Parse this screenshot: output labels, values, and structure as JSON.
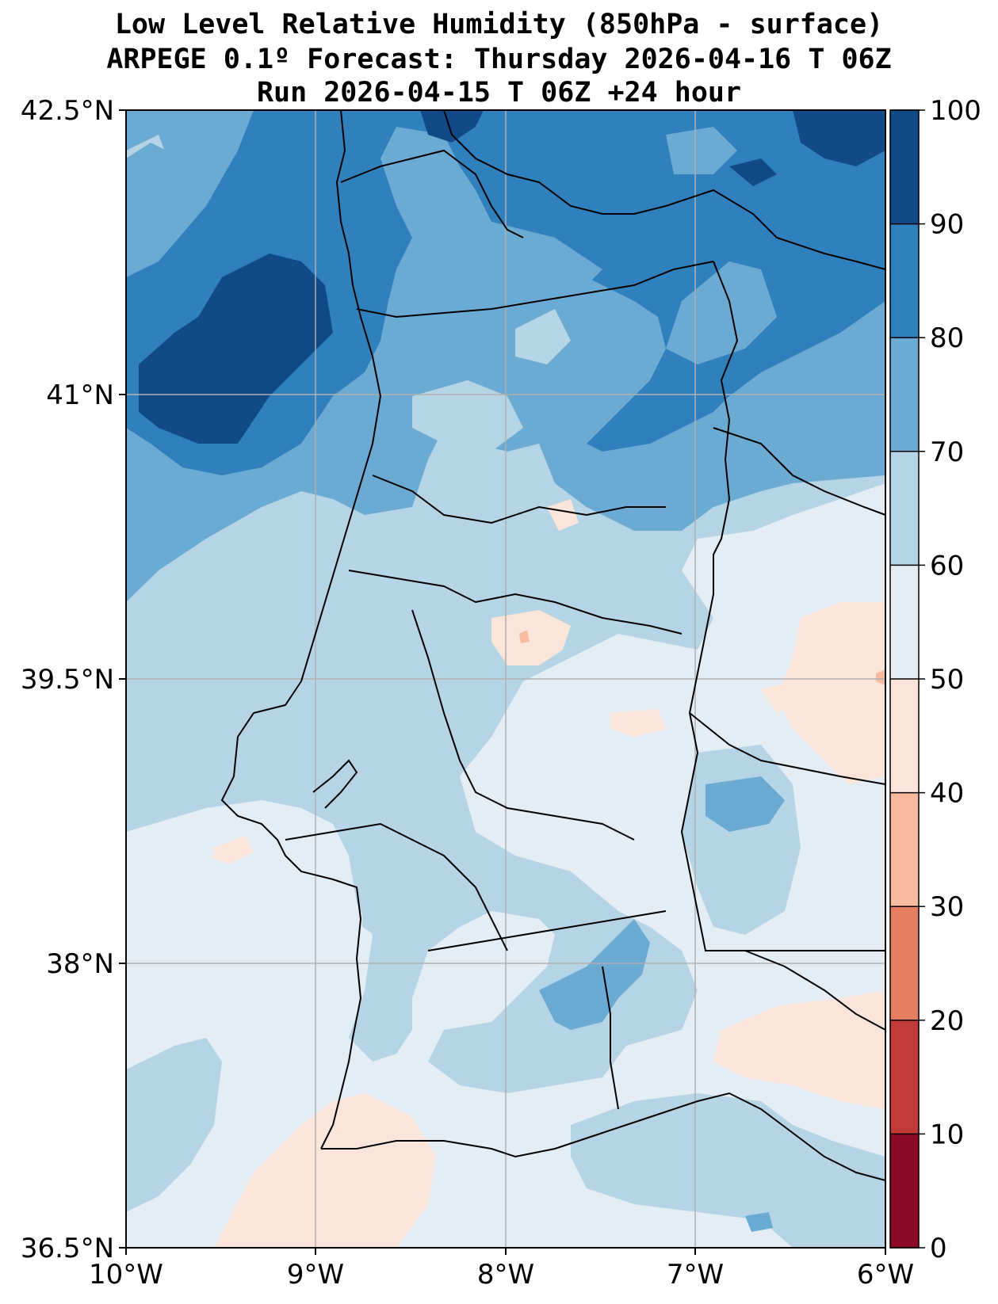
{
  "title": {
    "line1": "Low Level Relative Humidity (850hPa - surface)",
    "line2": "ARPEGE 0.1º Forecast: Thursday 2026-04-16 T 06Z",
    "line3": "Run 2026-04-15 T 06Z +24 hour"
  },
  "map": {
    "lat_range": [
      36.5,
      42.5
    ],
    "lon_range": [
      -10,
      -6
    ],
    "lat_ticks": [
      "42.5°N",
      "41°N",
      "39.5°N",
      "38°N",
      "36.5°N"
    ],
    "lon_ticks": [
      "10°W",
      "9°W",
      "8°W",
      "7°W",
      "6°W"
    ]
  },
  "colorbar": {
    "levels": [
      0,
      10,
      20,
      30,
      40,
      50,
      60,
      70,
      80,
      90,
      100
    ],
    "labels": [
      "0",
      "10",
      "20",
      "30",
      "40",
      "50",
      "60",
      "70",
      "80",
      "90",
      "100"
    ],
    "colors": [
      "#8b0a26",
      "#c23b3b",
      "#e57e62",
      "#f8bb9f",
      "#fbe5da",
      "#e4ecf4",
      "#b5d5e7",
      "#6aaad3",
      "#3080bd",
      "#124a88"
    ]
  }
}
